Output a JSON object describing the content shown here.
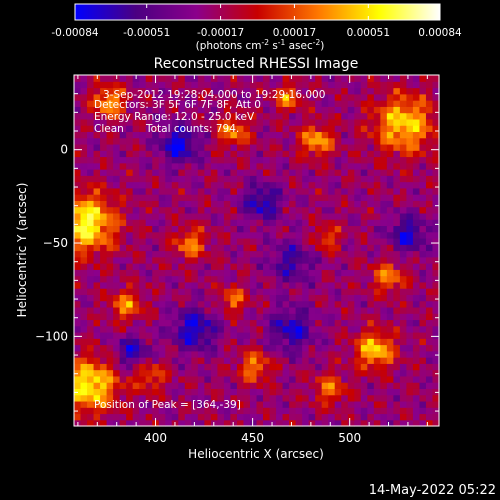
{
  "colorbar": {
    "ticks": [
      "-0.00084",
      "-0.00051",
      "-0.00017",
      "0.00017",
      "0.00051",
      "0.00084"
    ],
    "tick_values": [
      -0.00084,
      -0.00051,
      -0.00017,
      0.00017,
      0.00051,
      0.00084
    ],
    "units": "(photons cm",
    "units_exp1": "-2",
    "units_mid": " s",
    "units_exp2": "-1",
    "units_mid2": " asec",
    "units_exp3": "-2",
    "units_close": ")",
    "range": [
      -0.00084,
      0.00084
    ]
  },
  "chart_data": {
    "type": "heatmap",
    "title": "Reconstructed RHESSI Image",
    "xlabel": "Heliocentric X (arcsec)",
    "ylabel": "Heliocentric Y (arcsec)",
    "xlim": [
      358,
      546
    ],
    "ylim": [
      -148,
      40
    ],
    "x_ticks": [
      400,
      450,
      500
    ],
    "y_ticks": [
      0,
      -50,
      -100
    ],
    "x_tick_labels": [
      "400",
      "450",
      "500"
    ],
    "y_tick_labels": [
      "0",
      "−50",
      "−100"
    ],
    "colormap": [
      "#0000ff",
      "#4b0082",
      "#8b008b",
      "#c80000",
      "#ff7800",
      "#ffff00",
      "#ffffff"
    ],
    "annotations": {
      "line1": "3-Sep-2012 19:28:04.000 to 19:29:16.000",
      "line2": "Detectors: 3F 5F 6F 7F 8F, Att 0",
      "line3": "Energy Range: 12.0 - 25.0 keV",
      "line4_a": "Clean",
      "line4_b": "Total counts: 794.",
      "peak": "Position of Peak = [364,-39]"
    },
    "peak": [
      364,
      -39
    ],
    "bright_sources": [
      {
        "x": 364,
        "y": -39,
        "value": 0.00084,
        "sigma": 11
      },
      {
        "x": 366,
        "y": -126,
        "value": 0.0008,
        "sigma": 10
      },
      {
        "x": 528,
        "y": 14,
        "value": 0.0007,
        "sigma": 11
      },
      {
        "x": 513,
        "y": -107,
        "value": 0.0007,
        "sigma": 7
      },
      {
        "x": 376,
        "y": 26,
        "value": 0.0006,
        "sigma": 6
      },
      {
        "x": 440,
        "y": 10,
        "value": 0.0005,
        "sigma": 6
      },
      {
        "x": 468,
        "y": 28,
        "value": 0.0005,
        "sigma": 5
      },
      {
        "x": 483,
        "y": 5,
        "value": 0.0006,
        "sigma": 6
      },
      {
        "x": 418,
        "y": -50,
        "value": 0.0005,
        "sigma": 6
      },
      {
        "x": 440,
        "y": -80,
        "value": 0.00045,
        "sigma": 5
      },
      {
        "x": 520,
        "y": -68,
        "value": 0.0005,
        "sigma": 6
      },
      {
        "x": 451,
        "y": -116,
        "value": 0.0005,
        "sigma": 6
      },
      {
        "x": 385,
        "y": -83,
        "value": 0.0005,
        "sigma": 6
      },
      {
        "x": 397,
        "y": -121,
        "value": 0.0004,
        "sigma": 6
      },
      {
        "x": 488,
        "y": -47,
        "value": 0.0004,
        "sigma": 5
      },
      {
        "x": 490,
        "y": -128,
        "value": 0.00045,
        "sigma": 6
      }
    ],
    "dark_sources": [
      {
        "x": 412,
        "y": 3,
        "value": -0.0006,
        "sigma": 7
      },
      {
        "x": 455,
        "y": -28,
        "value": -0.0005,
        "sigma": 7
      },
      {
        "x": 420,
        "y": -96,
        "value": -0.00055,
        "sigma": 8
      },
      {
        "x": 470,
        "y": -96,
        "value": -0.0005,
        "sigma": 8
      },
      {
        "x": 530,
        "y": -45,
        "value": -0.0005,
        "sigma": 7
      },
      {
        "x": 388,
        "y": -108,
        "value": -0.0005,
        "sigma": 6
      },
      {
        "x": 470,
        "y": -60,
        "value": -0.0004,
        "sigma": 8
      }
    ]
  },
  "timestamp": "14-May-2022 05:22"
}
